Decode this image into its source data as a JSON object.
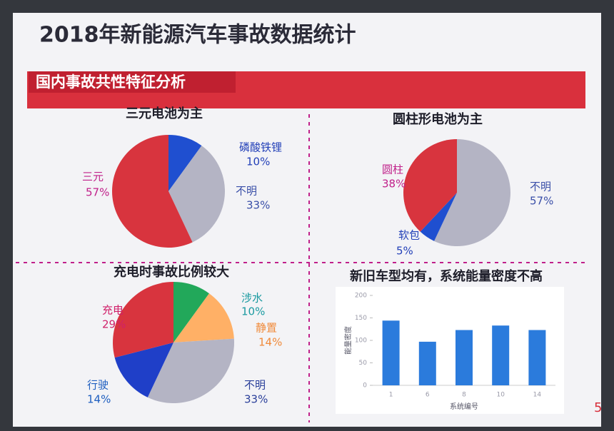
{
  "title": "2018年新能源汽车事故数据统计",
  "banner": "国内事故共性特征分析",
  "page_number": "5",
  "chart_data": [
    {
      "type": "pie",
      "title": "三元电池为主",
      "categories": [
        "磷酸铁锂",
        "不明",
        "三元"
      ],
      "values": [
        10,
        33,
        57
      ],
      "value_labels": [
        "10%",
        "33%",
        "57%"
      ],
      "colors": [
        "#1f4fd0",
        "#b4b4c4",
        "#d8343e"
      ],
      "label_colors": [
        "#2340b8",
        "#3a4fa8",
        "#c0208a"
      ]
    },
    {
      "type": "pie",
      "title": "圆柱形电池为主",
      "categories": [
        "不明",
        "软包",
        "圆柱"
      ],
      "values": [
        57,
        5,
        38
      ],
      "value_labels": [
        "57%",
        "5%",
        "38%"
      ],
      "colors": [
        "#b4b4c4",
        "#1f4fd0",
        "#d8343e"
      ],
      "label_colors": [
        "#3a4fa8",
        "#2340b8",
        "#c0208a"
      ]
    },
    {
      "type": "pie",
      "title": "充电时事故比例较大",
      "categories": [
        "涉水",
        "静置",
        "不明",
        "行驶",
        "充电"
      ],
      "values": [
        10,
        14,
        33,
        14,
        29
      ],
      "value_labels": [
        "10%",
        "14%",
        "33%",
        "14%",
        "29%"
      ],
      "colors": [
        "#22a85a",
        "#ffb066",
        "#b4b4c4",
        "#1f3fc8",
        "#d8343e"
      ],
      "label_colors": [
        "#1a9aa0",
        "#f08a3a",
        "#2a3f9a",
        "#1f5fc0",
        "#d0206a"
      ]
    },
    {
      "type": "bar",
      "title": "新旧车型均有，系统能量密度不高",
      "categories": [
        "1",
        "6",
        "8",
        "10",
        "14"
      ],
      "values": [
        144,
        97,
        123,
        133,
        123
      ],
      "color": "#2b7bdc",
      "ylim": [
        0,
        200
      ],
      "yticks": [
        0,
        50,
        100,
        150,
        200
      ],
      "x_label": "系统编号",
      "y_label": "能量密度"
    }
  ]
}
